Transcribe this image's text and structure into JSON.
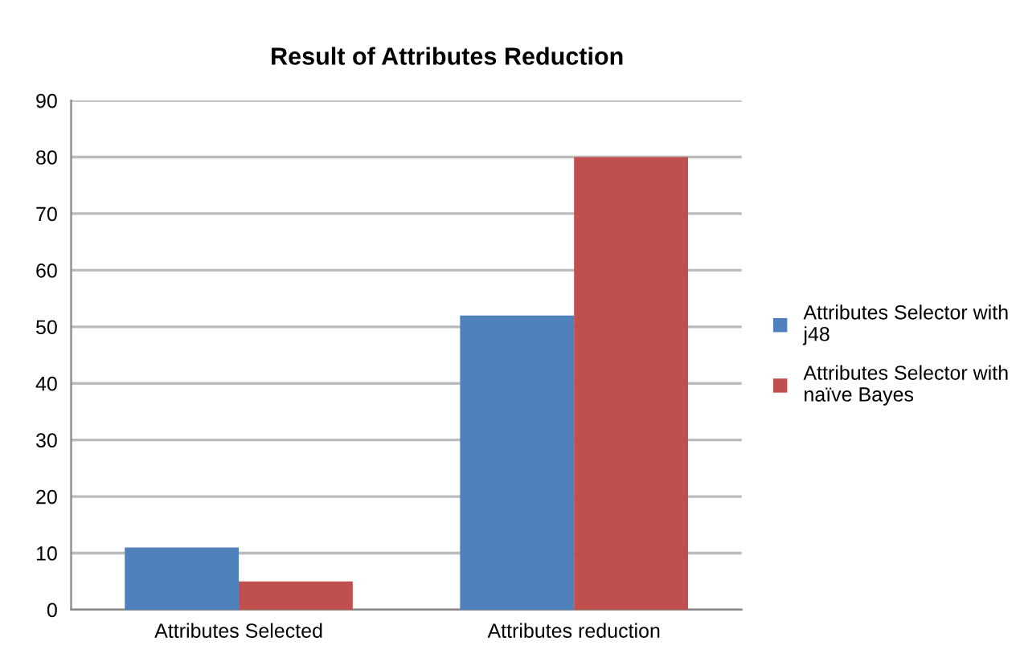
{
  "chart_data": {
    "type": "bar",
    "title": "Result of Attributes Reduction",
    "categories": [
      "Attributes Selected",
      "Attributes reduction"
    ],
    "series": [
      {
        "name": "Attributes Selector with\nj48",
        "color": "#4f81bd",
        "values": [
          11,
          52
        ]
      },
      {
        "name": "Attributes Selector with\nnaïve Bayes",
        "color": "#c0504d",
        "values": [
          5,
          80
        ]
      }
    ],
    "ylim": [
      0,
      90
    ],
    "yticks": [
      0,
      10,
      20,
      30,
      40,
      50,
      60,
      70,
      80,
      90
    ],
    "grid": "y",
    "legend": "right"
  }
}
